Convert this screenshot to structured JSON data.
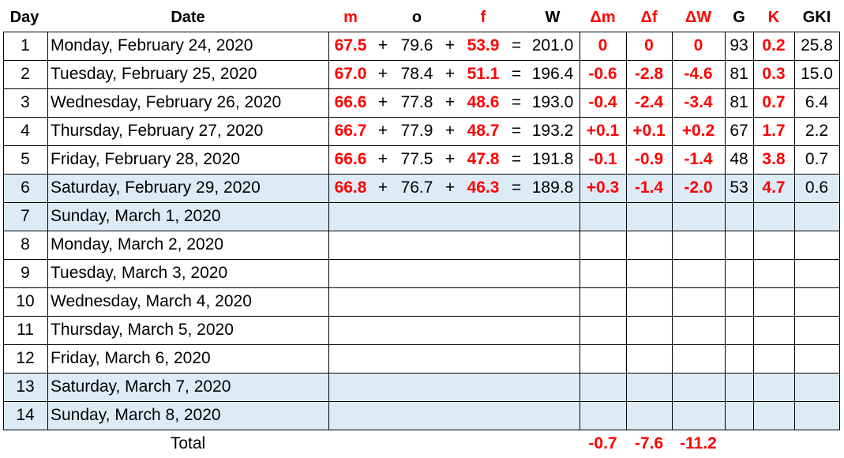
{
  "headers": {
    "day": "Day",
    "date": "Date",
    "m": "m",
    "o": "o",
    "f": "f",
    "w": "W",
    "dm": "Δm",
    "df": "Δf",
    "dw": "ΔW",
    "g": "G",
    "k": "K",
    "gki": "GKI"
  },
  "rows": [
    {
      "day": "1",
      "date": "Monday, February 24, 2020",
      "m": "67.5",
      "op1": "+",
      "o": "79.6",
      "op2": "+",
      "f": "53.9",
      "eq": "=",
      "w": "201.0",
      "dm": "0",
      "df": "0",
      "dw": "0",
      "g": "93",
      "k": "0.2",
      "gki": "25.8"
    },
    {
      "day": "2",
      "date": "Tuesday, February 25, 2020",
      "m": "67.0",
      "op1": "+",
      "o": "78.4",
      "op2": "+",
      "f": "51.1",
      "eq": "=",
      "w": "196.4",
      "dm": "-0.6",
      "df": "-2.8",
      "dw": "-4.6",
      "g": "81",
      "k": "0.3",
      "gki": "15.0"
    },
    {
      "day": "3",
      "date": "Wednesday, February 26, 2020",
      "m": "66.6",
      "op1": "+",
      "o": "77.8",
      "op2": "+",
      "f": "48.6",
      "eq": "=",
      "w": "193.0",
      "dm": "-0.4",
      "df": "-2.4",
      "dw": "-3.4",
      "g": "81",
      "k": "0.7",
      "gki": "6.4"
    },
    {
      "day": "4",
      "date": "Thursday, February 27, 2020",
      "m": "66.7",
      "op1": "+",
      "o": "77.9",
      "op2": "+",
      "f": "48.7",
      "eq": "=",
      "w": "193.2",
      "dm": "+0.1",
      "df": "+0.1",
      "dw": "+0.2",
      "g": "67",
      "k": "1.7",
      "gki": "2.2"
    },
    {
      "day": "5",
      "date": "Friday, February 28, 2020",
      "m": "66.6",
      "op1": "+",
      "o": "77.5",
      "op2": "+",
      "f": "47.8",
      "eq": "=",
      "w": "191.8",
      "dm": "-0.1",
      "df": "-0.9",
      "dw": "-1.4",
      "g": "48",
      "k": "3.8",
      "gki": "0.7"
    },
    {
      "day": "6",
      "date": "Saturday, February 29, 2020",
      "m": "66.8",
      "op1": "+",
      "o": "76.7",
      "op2": "+",
      "f": "46.3",
      "eq": "=",
      "w": "189.8",
      "dm": "+0.3",
      "df": "-1.4",
      "dw": "-2.0",
      "g": "53",
      "k": "4.7",
      "gki": "0.6"
    },
    {
      "day": "7",
      "date": "Sunday, March 1, 2020"
    },
    {
      "day": "8",
      "date": "Monday, March 2, 2020"
    },
    {
      "day": "9",
      "date": "Tuesday, March 3, 2020"
    },
    {
      "day": "10",
      "date": "Wednesday, March 4, 2020"
    },
    {
      "day": "11",
      "date": "Thursday, March 5, 2020"
    },
    {
      "day": "12",
      "date": "Friday, March 6, 2020"
    },
    {
      "day": "13",
      "date": "Saturday, March 7, 2020"
    },
    {
      "day": "14",
      "date": "Sunday, March 8, 2020"
    }
  ],
  "total": {
    "label": "Total",
    "dm": "-0.7",
    "df": "-7.6",
    "dw": "-11.2"
  },
  "colors": {
    "red": "#ff0000",
    "shade": "#ddebf7",
    "grid": "#000000"
  }
}
